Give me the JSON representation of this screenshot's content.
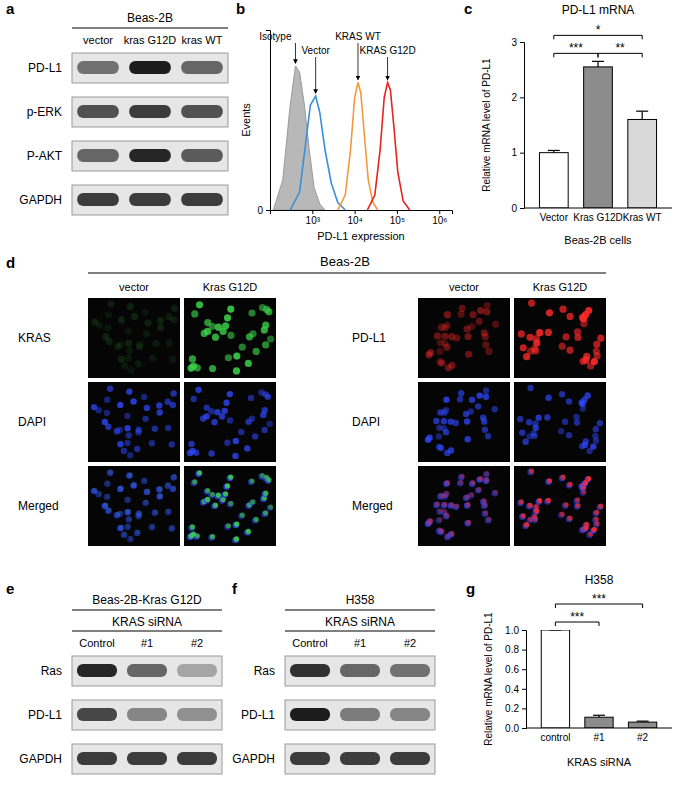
{
  "panel_labels": [
    "a",
    "b",
    "c",
    "d",
    "e",
    "f",
    "g"
  ],
  "blots": [
    {
      "title": "Beas-2B",
      "lanes": [
        "vector",
        "kras G12D",
        "kras WT"
      ],
      "rows": [
        {
          "label": "PD-L1",
          "intensity": [
            0.55,
            0.95,
            0.6
          ]
        },
        {
          "label": "p-ERK",
          "intensity": [
            0.7,
            0.8,
            0.7
          ]
        },
        {
          "label": "P-AKT",
          "intensity": [
            0.6,
            0.9,
            0.65
          ]
        },
        {
          "label": "GAPDH",
          "intensity": [
            0.8,
            0.8,
            0.8
          ]
        }
      ]
    },
    {
      "title": "Beas-2B-Kras G12D",
      "group_label": "KRAS siRNA",
      "lanes": [
        "Control",
        "#1",
        "#2"
      ],
      "rows": [
        {
          "label": "Ras",
          "intensity": [
            0.9,
            0.6,
            0.3
          ]
        },
        {
          "label": "PD-L1",
          "intensity": [
            0.75,
            0.45,
            0.4
          ]
        },
        {
          "label": "GAPDH",
          "intensity": [
            0.8,
            0.8,
            0.8
          ]
        }
      ]
    },
    {
      "title": "H358",
      "group_label": "KRAS siRNA",
      "lanes": [
        "Control",
        "#1",
        "#2"
      ],
      "rows": [
        {
          "label": "Ras",
          "intensity": [
            0.85,
            0.6,
            0.55
          ]
        },
        {
          "label": "PD-L1",
          "intensity": [
            0.95,
            0.5,
            0.45
          ]
        },
        {
          "label": "GAPDH",
          "intensity": [
            0.8,
            0.8,
            0.8
          ]
        }
      ]
    }
  ],
  "images": {
    "title": "Beas-2B",
    "dapi_color": "#3048ff",
    "grids": [
      {
        "columns": [
          "vector",
          "Kras G12D"
        ],
        "rows": [
          "KRAS",
          "DAPI",
          "Merged"
        ],
        "stain_color": "#3cd24a",
        "stain_intensity": [
          0.15,
          0.9
        ],
        "dapi_intensity": [
          0.8,
          0.8
        ]
      },
      {
        "columns": [
          "vector",
          "Kras G12D"
        ],
        "rows": [
          "PD-L1",
          "DAPI",
          "Merged"
        ],
        "stain_color": "#ff2a2a",
        "stain_intensity": [
          0.45,
          0.95
        ],
        "dapi_intensity": [
          0.8,
          0.8
        ]
      }
    ]
  },
  "chart_data": [
    {
      "type": "line",
      "log": "x",
      "x_label": "PD-L1 expression",
      "y_label": "Events",
      "xlim": [
        100,
        2000000
      ],
      "xticks": [
        {
          "value": 1000,
          "label": "10³"
        },
        {
          "value": 10000,
          "label": "10⁴"
        },
        {
          "value": 100000,
          "label": "10⁵"
        },
        {
          "value": 1000000,
          "label": "10⁶"
        }
      ],
      "ylim": [
        0,
        120
      ],
      "yticks": [
        0
      ],
      "series": [
        {
          "name": "Isotype",
          "type": "area",
          "color": "#b8b8b8",
          "x": [
            120,
            200,
            300,
            400,
            500,
            650,
            850,
            1100,
            1500,
            2000
          ],
          "values": [
            0,
            20,
            70,
            96,
            92,
            70,
            40,
            15,
            4,
            0
          ]
        },
        {
          "name": "Vector",
          "type": "line",
          "color": "#3a8fd9",
          "x": [
            300,
            500,
            700,
            900,
            1200,
            1500,
            2000,
            2800,
            4000,
            6000
          ],
          "values": [
            0,
            12,
            45,
            70,
            76,
            65,
            40,
            18,
            5,
            0
          ]
        },
        {
          "name": "KRAS WT",
          "type": "line",
          "color": "#f59a3b",
          "x": [
            4000,
            6000,
            8000,
            10000,
            12000,
            14000,
            17000,
            21000,
            27000,
            35000
          ],
          "values": [
            0,
            10,
            40,
            75,
            85,
            78,
            50,
            20,
            5,
            0
          ]
        },
        {
          "name": "KRAS G12D",
          "type": "line",
          "color": "#e8231f",
          "x": [
            20000,
            30000,
            40000,
            50000,
            60000,
            70000,
            85000,
            105000,
            140000,
            200000
          ],
          "values": [
            0,
            10,
            40,
            75,
            85,
            80,
            55,
            25,
            6,
            0
          ]
        }
      ]
    },
    {
      "type": "bar",
      "title": "PD-L1 mRNA",
      "x_label": "Beas-2B cells",
      "y_label": "Relative mRNA level of PD-L1",
      "categories": [
        "Vector",
        "Kras G12D",
        "Kras WT"
      ],
      "values": [
        1.0,
        2.55,
        1.6
      ],
      "errors": [
        0.04,
        0.1,
        0.15
      ],
      "colors": [
        "#ffffff",
        "#8c8c8c",
        "#d9d9d9"
      ],
      "ylim": [
        0,
        3
      ],
      "yticks": [
        0,
        1,
        2,
        3
      ],
      "annotations": [
        {
          "pair": [
            "Vector",
            "Kras G12D"
          ],
          "text": "***"
        },
        {
          "pair": [
            "Kras G12D",
            "Kras WT"
          ],
          "text": "**"
        },
        {
          "pair": [
            "Vector",
            "Kras WT"
          ],
          "text": "*"
        }
      ]
    },
    {
      "type": "bar",
      "title": "H358",
      "x_label": "KRAS siRNA",
      "y_label": "Relative mRNA level of PD-L1",
      "categories": [
        "control",
        "#1",
        "#2"
      ],
      "values": [
        1.0,
        0.11,
        0.06
      ],
      "errors": [
        0,
        0.02,
        0.01
      ],
      "colors": [
        "#ffffff",
        "#8c8c8c",
        "#8c8c8c"
      ],
      "ylim": [
        0,
        1
      ],
      "yticks": [
        {
          "value": 0,
          "label": "0.0"
        },
        0.2,
        0.4,
        0.6,
        0.8,
        {
          "value": 1,
          "label": "1.0"
        }
      ],
      "annotations": [
        {
          "pair": [
            "control",
            "#1"
          ],
          "text": "***"
        },
        {
          "pair": [
            "control",
            "#2"
          ],
          "text": "***"
        }
      ]
    }
  ]
}
